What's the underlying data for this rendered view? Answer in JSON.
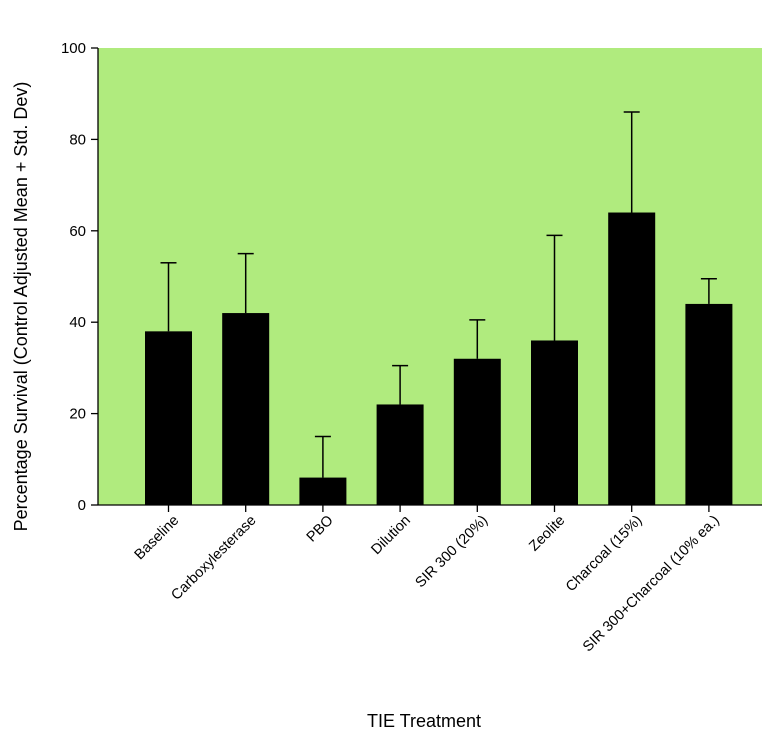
{
  "chart_data": {
    "type": "bar",
    "xlabel": "TIE Treatment",
    "ylabel": "Percentage Survival (Control Adjusted Mean + Std. Dev)",
    "ylim": [
      0,
      100
    ],
    "yticks": [
      0,
      20,
      40,
      60,
      80,
      100
    ],
    "plot_background": "#b0eb7e",
    "bar_color": "#000000",
    "grid": false,
    "categories": [
      "Baseline",
      "Carboxylesterase",
      "PBO",
      "Dilution",
      "SIR 300 (20%)",
      "Zeolite",
      "Charcoal (15%)",
      "SIR 300+Charcoal (10% ea.)"
    ],
    "values": [
      38,
      42,
      6,
      22,
      32,
      36,
      64,
      44
    ],
    "error_upper": [
      53,
      55,
      15,
      30.5,
      40.5,
      59,
      86,
      49.5
    ]
  }
}
